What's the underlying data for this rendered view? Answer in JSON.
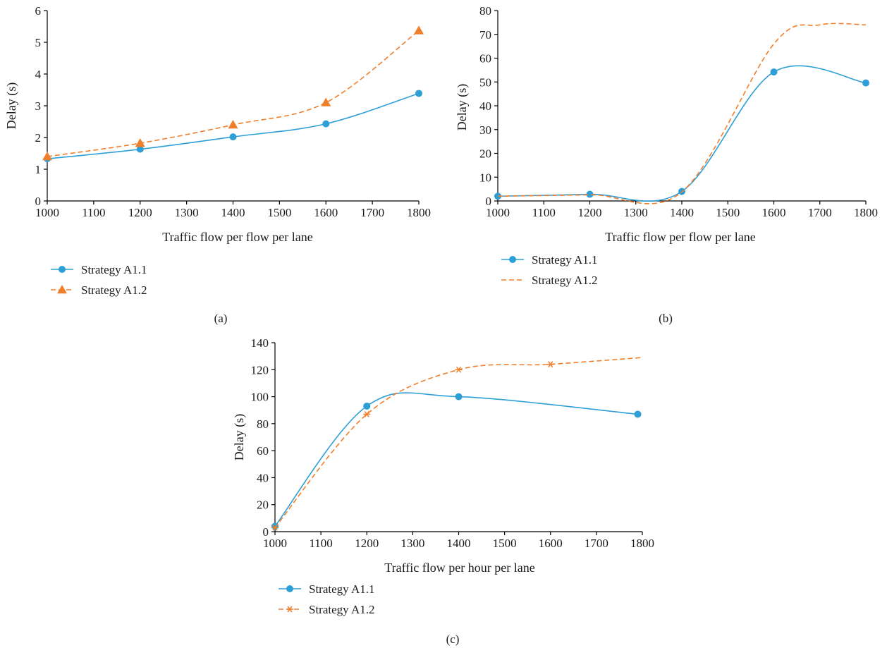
{
  "colors": {
    "series1": "#2e9fd6",
    "series2": "#f07f2c",
    "axis": "#000000",
    "text": "#1a1a1a"
  },
  "chart_data": [
    {
      "panel_label": "(a)",
      "type": "line",
      "xlabel": "Traffic flow per flow per lane",
      "ylabel": "Delay (s)",
      "xlim": [
        1000,
        1800
      ],
      "ylim": [
        0,
        6
      ],
      "x_ticks": [
        1000,
        1100,
        1200,
        1300,
        1400,
        1500,
        1600,
        1700,
        1800
      ],
      "y_ticks": [
        0,
        1,
        2,
        3,
        4,
        5,
        6
      ],
      "grid": false,
      "legend_position": "bottom-left",
      "series": [
        {
          "name": "Strategy A1.1",
          "marker": "circle",
          "line_style": "solid",
          "color": "#2e9fd6",
          "x": [
            1000,
            1200,
            1400,
            1600,
            1800
          ],
          "y": [
            1.33,
            1.63,
            2.02,
            2.43,
            3.39
          ],
          "smooth": true
        },
        {
          "name": "Strategy A1.2",
          "marker": "triangle",
          "line_style": "dashed",
          "color": "#f07f2c",
          "x": [
            1000,
            1200,
            1400,
            1600,
            1800
          ],
          "y": [
            1.4,
            1.82,
            2.4,
            3.1,
            5.37
          ],
          "smooth": true
        }
      ]
    },
    {
      "panel_label": "(b)",
      "type": "line",
      "xlabel": "Traffic flow per flow per lane",
      "ylabel": "Delay (s)",
      "xlim": [
        1000,
        1800
      ],
      "ylim": [
        0,
        80
      ],
      "x_ticks": [
        1000,
        1100,
        1200,
        1300,
        1400,
        1500,
        1600,
        1700,
        1800
      ],
      "y_ticks": [
        0,
        10,
        20,
        30,
        40,
        50,
        60,
        70,
        80
      ],
      "grid": false,
      "legend_position": "bottom-left",
      "series": [
        {
          "name": "Strategy A1.1",
          "marker": "circle",
          "line_style": "solid",
          "color": "#2e9fd6",
          "x": [
            1000,
            1200,
            1400,
            1600,
            1800
          ],
          "y": [
            2,
            2.8,
            4,
            54.2,
            49.6
          ],
          "smooth": true
        },
        {
          "name": "Strategy A1.2",
          "marker": "none",
          "line_style": "dashed",
          "color": "#f07f2c",
          "x": [
            1000,
            1200,
            1400,
            1600,
            1700,
            1800
          ],
          "y": [
            2,
            2.6,
            3.8,
            66,
            74,
            74
          ],
          "smooth": true
        }
      ]
    },
    {
      "panel_label": "(c)",
      "type": "line",
      "xlabel": "Traffic flow per hour per lane",
      "ylabel": "Delay (s)",
      "xlim": [
        1000,
        1800
      ],
      "ylim": [
        0,
        140
      ],
      "x_ticks": [
        1000,
        1100,
        1200,
        1300,
        1400,
        1500,
        1600,
        1700,
        1800
      ],
      "y_ticks": [
        0,
        20,
        40,
        60,
        80,
        100,
        120,
        140
      ],
      "grid": false,
      "legend_position": "bottom-left",
      "series": [
        {
          "name": "Strategy A1.1",
          "marker": "circle",
          "line_style": "solid",
          "color": "#2e9fd6",
          "x": [
            1000,
            1200,
            1400,
            1790
          ],
          "y": [
            4,
            93,
            100,
            87
          ],
          "smooth": true
        },
        {
          "name": "Strategy A1.2",
          "marker": "asterisk",
          "line_style": "dashed",
          "color": "#f07f2c",
          "x": [
            1000,
            1200,
            1400,
            1600,
            1800
          ],
          "y": [
            3,
            87,
            120,
            124,
            129
          ],
          "smooth": true,
          "marker_indices": [
            0,
            1,
            2,
            3
          ]
        }
      ]
    }
  ]
}
